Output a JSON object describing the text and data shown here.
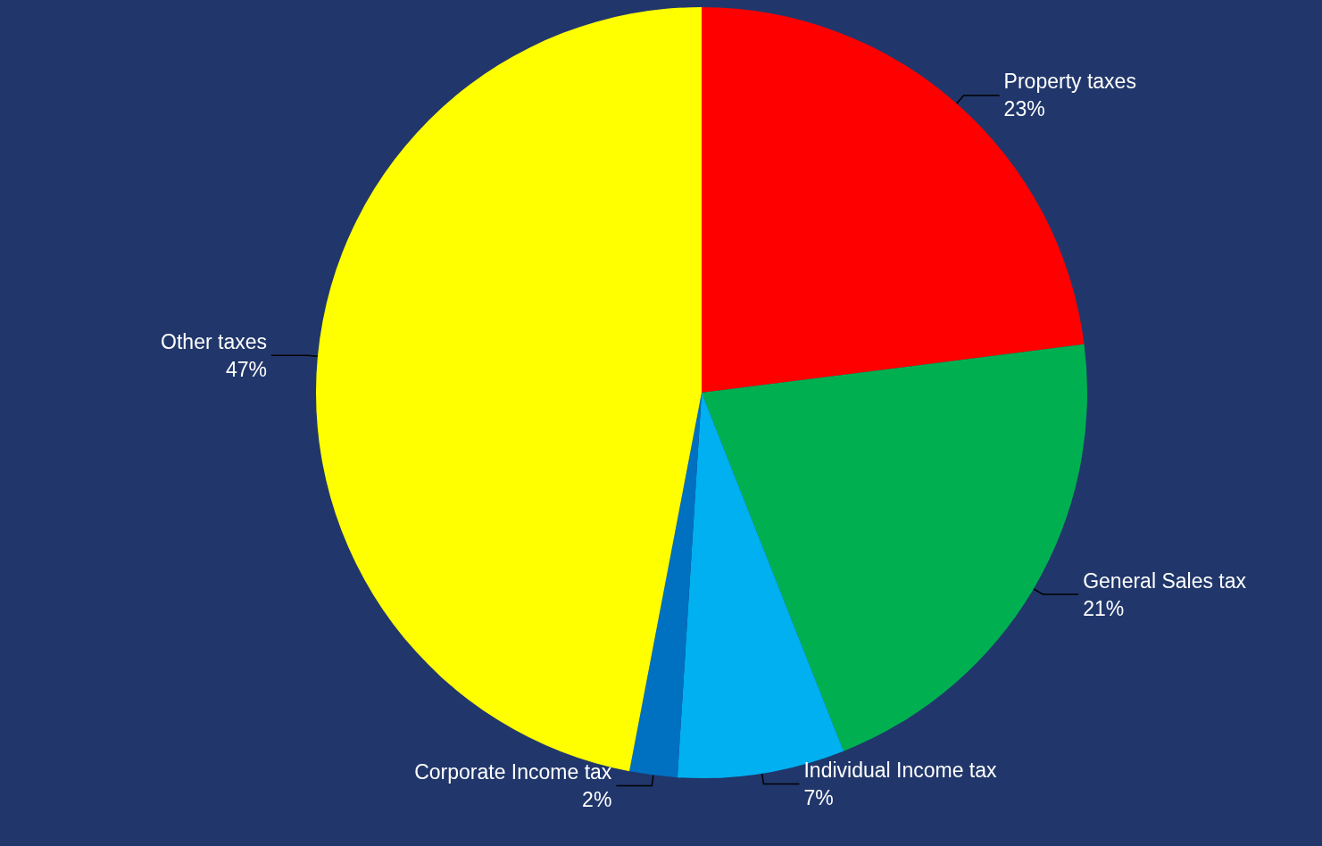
{
  "chart_data": {
    "type": "pie",
    "categories": [
      "Property taxes",
      "General Sales tax",
      "Individual Income tax",
      "Corporate Income tax",
      "Other taxes"
    ],
    "values": [
      23,
      21,
      7,
      2,
      47
    ],
    "value_labels": [
      "23%",
      "21%",
      "7%",
      "2%",
      "47%"
    ],
    "colors": [
      "#ff0000",
      "#00b050",
      "#00b0f0",
      "#0070c0",
      "#ffff00"
    ],
    "legend": false
  }
}
